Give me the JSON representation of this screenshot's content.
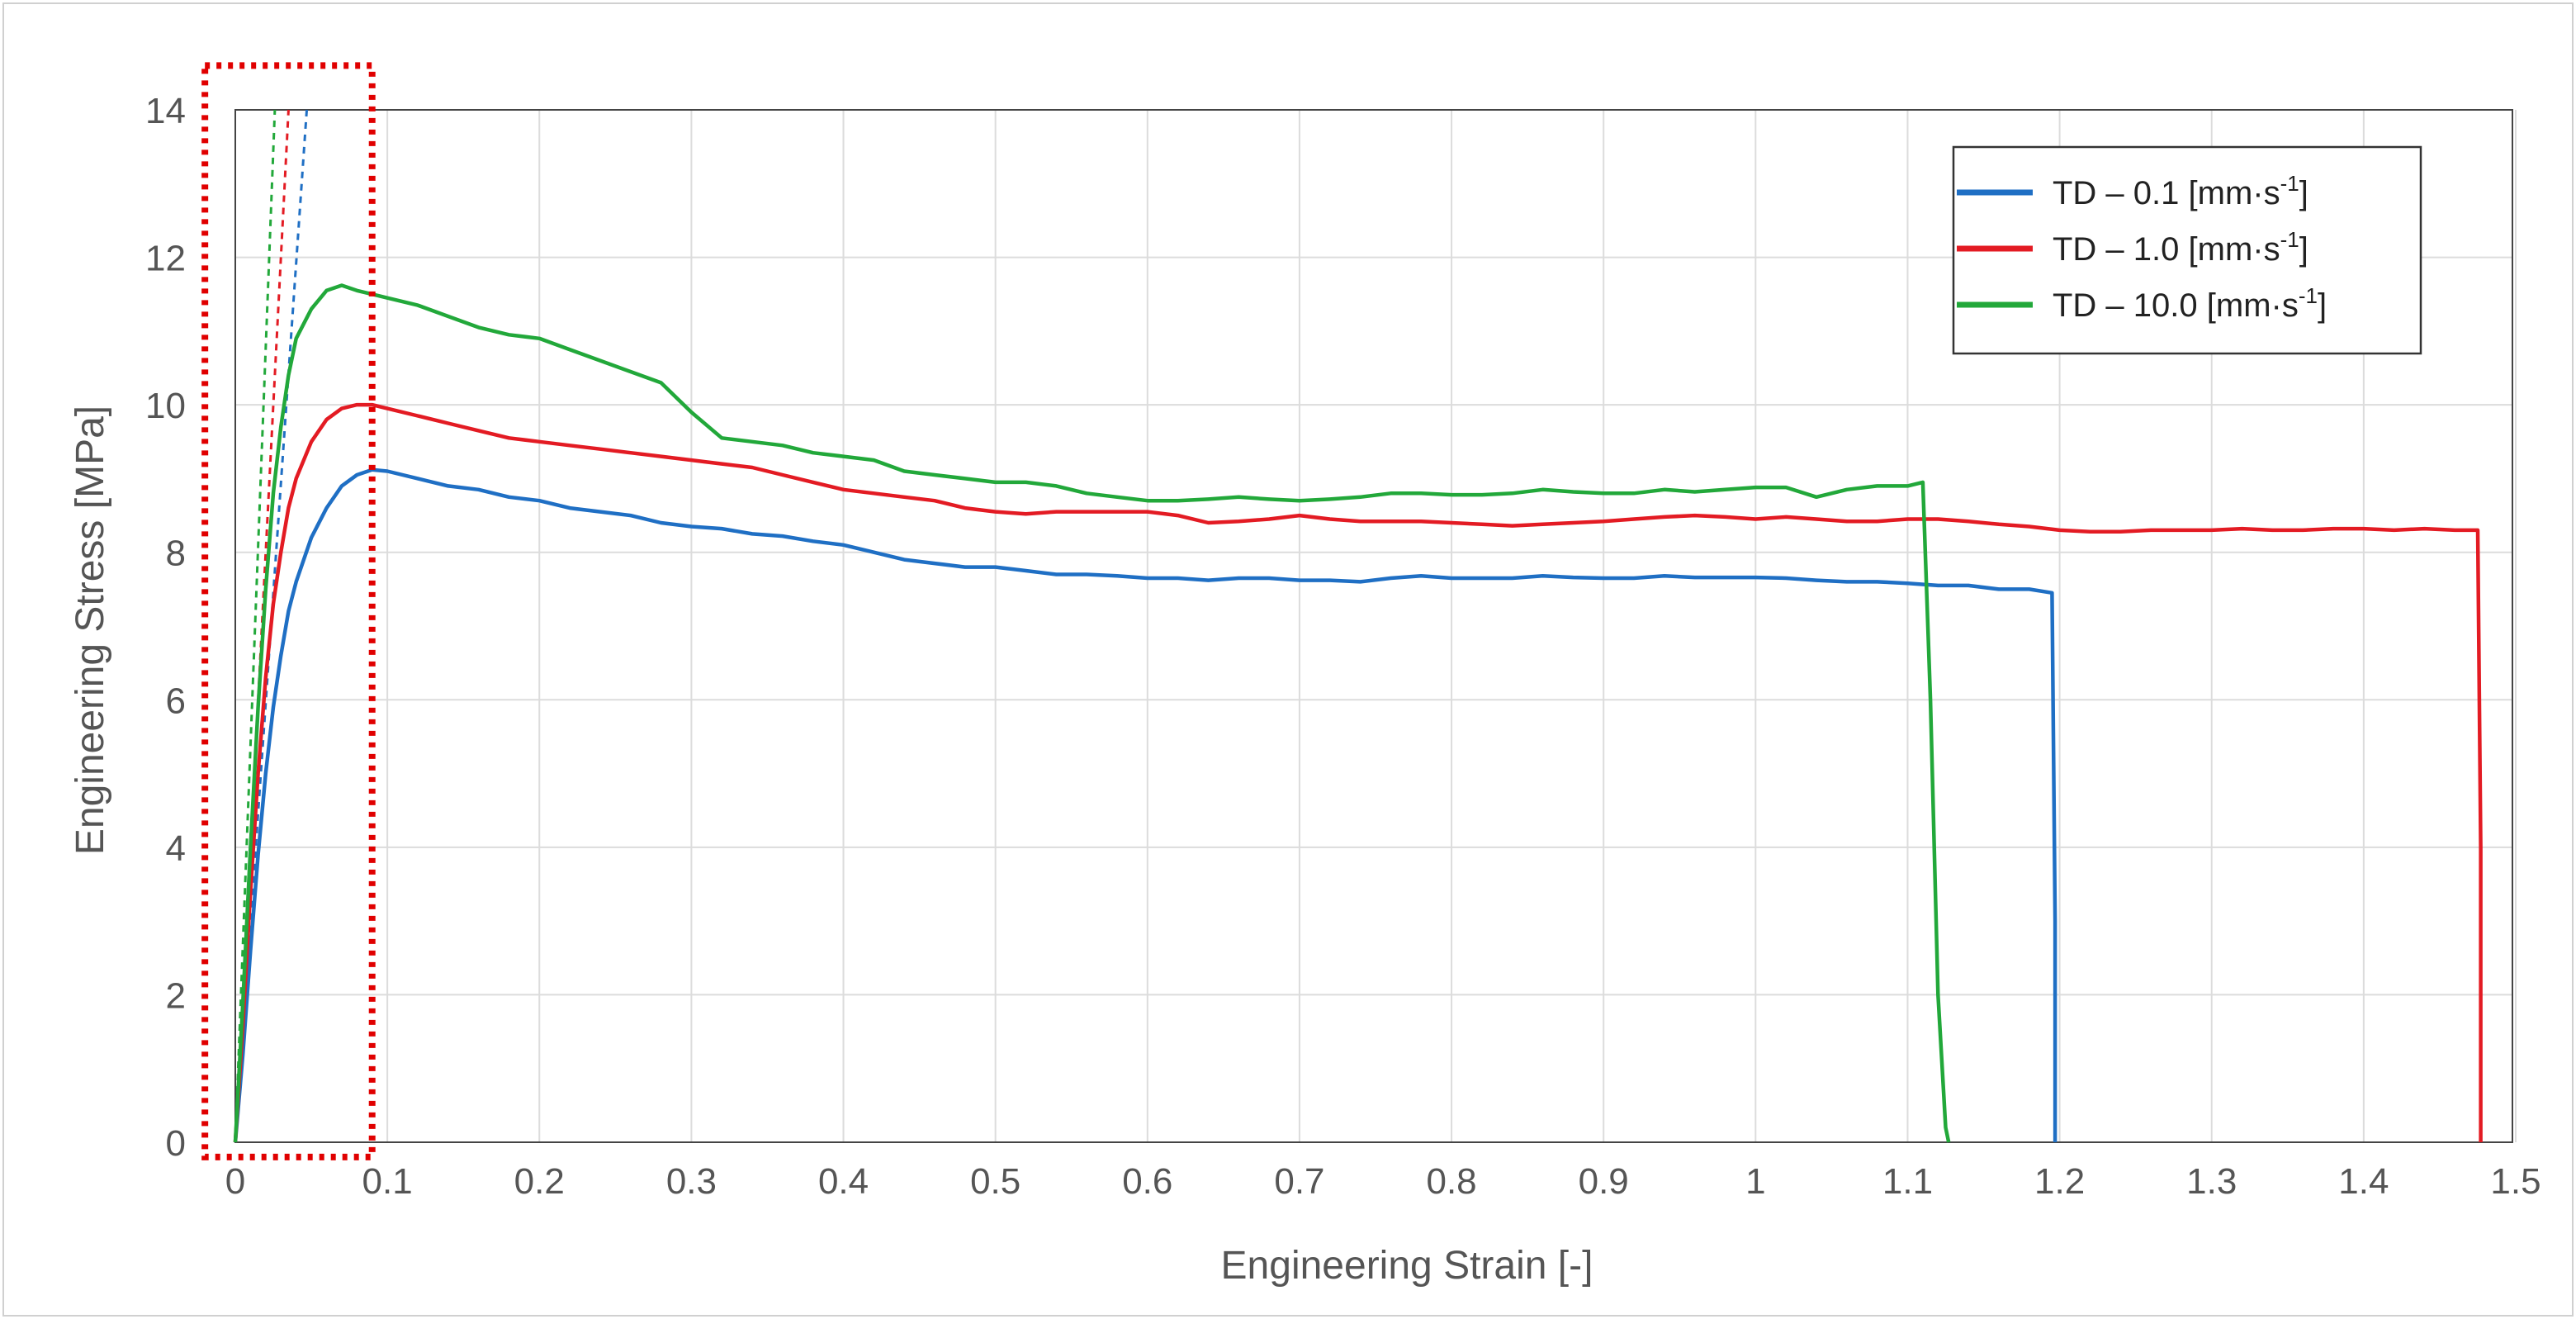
{
  "chart_data": {
    "type": "line",
    "title": "",
    "xlabel": "Engineering Strain [-]",
    "ylabel": "Engineering Stress [MPa]",
    "xlim": [
      0,
      1.5
    ],
    "ylim": [
      0,
      14
    ],
    "xticks": [
      0,
      0.1,
      0.2,
      0.3,
      0.4,
      0.5,
      0.6,
      0.7,
      0.8,
      0.9,
      1,
      1.1,
      1.2,
      1.3,
      1.4,
      1.5
    ],
    "xtick_labels": [
      "0",
      "0.1",
      "0.2",
      "0.3",
      "0.4",
      "0.5",
      "0.6",
      "0.7",
      "0.8",
      "0.9",
      "1",
      "1.1",
      "1.2",
      "1.3",
      "1.4",
      "1.5"
    ],
    "yticks": [
      0,
      2,
      4,
      6,
      8,
      10,
      12,
      14
    ],
    "ytick_labels": [
      "0",
      "2",
      "4",
      "6",
      "8",
      "10",
      "12",
      "14"
    ],
    "grid": true,
    "legend_position": "top-right",
    "series": [
      {
        "name": "TD – 0.1 [mm·s-1]",
        "legend_main": "TD – 0.1 [mm·s",
        "legend_sup": "-1",
        "legend_end": "]",
        "color": "#1f6fc4",
        "x": [
          0,
          0.005,
          0.01,
          0.015,
          0.02,
          0.025,
          0.03,
          0.035,
          0.04,
          0.05,
          0.06,
          0.07,
          0.08,
          0.09,
          0.1,
          0.12,
          0.14,
          0.16,
          0.18,
          0.2,
          0.22,
          0.24,
          0.26,
          0.28,
          0.3,
          0.32,
          0.34,
          0.36,
          0.38,
          0.4,
          0.42,
          0.44,
          0.46,
          0.48,
          0.5,
          0.52,
          0.54,
          0.56,
          0.58,
          0.6,
          0.62,
          0.64,
          0.66,
          0.68,
          0.7,
          0.72,
          0.74,
          0.76,
          0.78,
          0.8,
          0.82,
          0.84,
          0.86,
          0.88,
          0.9,
          0.92,
          0.94,
          0.96,
          0.98,
          1.0,
          1.02,
          1.04,
          1.06,
          1.08,
          1.1,
          1.12,
          1.14,
          1.16,
          1.18,
          1.195,
          1.197,
          1.197
        ],
        "y": [
          0,
          1.2,
          2.6,
          3.9,
          5.0,
          5.9,
          6.6,
          7.2,
          7.6,
          8.2,
          8.6,
          8.9,
          9.05,
          9.12,
          9.1,
          9.0,
          8.9,
          8.85,
          8.75,
          8.7,
          8.6,
          8.55,
          8.5,
          8.4,
          8.35,
          8.32,
          8.25,
          8.22,
          8.15,
          8.1,
          8.0,
          7.9,
          7.85,
          7.8,
          7.8,
          7.75,
          7.7,
          7.7,
          7.68,
          7.65,
          7.65,
          7.62,
          7.65,
          7.65,
          7.62,
          7.62,
          7.6,
          7.65,
          7.68,
          7.65,
          7.65,
          7.65,
          7.68,
          7.66,
          7.65,
          7.65,
          7.68,
          7.66,
          7.66,
          7.66,
          7.65,
          7.62,
          7.6,
          7.6,
          7.58,
          7.55,
          7.55,
          7.5,
          7.5,
          7.45,
          3.0,
          0
        ]
      },
      {
        "name": "TD – 1.0 [mm·s-1]",
        "legend_main": "TD – 1.0 [mm·s",
        "legend_sup": "-1",
        "legend_end": "]",
        "color": "#e31b23",
        "x": [
          0,
          0.005,
          0.01,
          0.015,
          0.02,
          0.025,
          0.03,
          0.035,
          0.04,
          0.05,
          0.06,
          0.07,
          0.08,
          0.09,
          0.1,
          0.12,
          0.14,
          0.16,
          0.18,
          0.2,
          0.22,
          0.24,
          0.26,
          0.28,
          0.3,
          0.32,
          0.34,
          0.36,
          0.38,
          0.4,
          0.42,
          0.44,
          0.46,
          0.48,
          0.5,
          0.52,
          0.54,
          0.56,
          0.58,
          0.6,
          0.62,
          0.64,
          0.66,
          0.68,
          0.7,
          0.72,
          0.74,
          0.76,
          0.78,
          0.8,
          0.82,
          0.84,
          0.86,
          0.88,
          0.9,
          0.92,
          0.94,
          0.96,
          0.98,
          1.0,
          1.02,
          1.04,
          1.06,
          1.08,
          1.1,
          1.12,
          1.14,
          1.16,
          1.18,
          1.2,
          1.22,
          1.24,
          1.26,
          1.28,
          1.3,
          1.32,
          1.34,
          1.36,
          1.38,
          1.4,
          1.42,
          1.44,
          1.46,
          1.475,
          1.477,
          1.477
        ],
        "y": [
          0,
          1.6,
          3.4,
          5.0,
          6.3,
          7.3,
          8.0,
          8.6,
          9.0,
          9.5,
          9.8,
          9.95,
          10.0,
          10.0,
          9.95,
          9.85,
          9.75,
          9.65,
          9.55,
          9.5,
          9.45,
          9.4,
          9.35,
          9.3,
          9.25,
          9.2,
          9.15,
          9.05,
          8.95,
          8.85,
          8.8,
          8.75,
          8.7,
          8.6,
          8.55,
          8.52,
          8.55,
          8.55,
          8.55,
          8.55,
          8.5,
          8.4,
          8.42,
          8.45,
          8.5,
          8.45,
          8.42,
          8.42,
          8.42,
          8.4,
          8.38,
          8.36,
          8.38,
          8.4,
          8.42,
          8.45,
          8.48,
          8.5,
          8.48,
          8.45,
          8.48,
          8.45,
          8.42,
          8.42,
          8.45,
          8.45,
          8.42,
          8.38,
          8.35,
          8.3,
          8.28,
          8.28,
          8.3,
          8.3,
          8.3,
          8.32,
          8.3,
          8.3,
          8.32,
          8.32,
          8.3,
          8.32,
          8.3,
          8.3,
          4.0,
          0
        ]
      },
      {
        "name": "TD – 10.0 [mm·s-1]",
        "legend_main": "TD – 10.0 [mm·s",
        "legend_sup": "-1",
        "legend_end": "]",
        "color": "#22a83a",
        "x": [
          0,
          0.005,
          0.01,
          0.015,
          0.02,
          0.025,
          0.03,
          0.035,
          0.04,
          0.05,
          0.06,
          0.07,
          0.08,
          0.09,
          0.1,
          0.12,
          0.14,
          0.16,
          0.18,
          0.2,
          0.22,
          0.24,
          0.26,
          0.28,
          0.3,
          0.32,
          0.34,
          0.36,
          0.38,
          0.4,
          0.42,
          0.44,
          0.46,
          0.48,
          0.5,
          0.52,
          0.54,
          0.56,
          0.58,
          0.6,
          0.62,
          0.64,
          0.66,
          0.68,
          0.7,
          0.72,
          0.74,
          0.76,
          0.78,
          0.8,
          0.82,
          0.84,
          0.86,
          0.88,
          0.9,
          0.92,
          0.94,
          0.96,
          0.98,
          1.0,
          1.02,
          1.04,
          1.06,
          1.08,
          1.1,
          1.11,
          1.115,
          1.12,
          1.125,
          1.127
        ],
        "y": [
          0,
          1.9,
          4.0,
          5.9,
          7.5,
          8.8,
          9.7,
          10.4,
          10.9,
          11.3,
          11.55,
          11.62,
          11.55,
          11.5,
          11.45,
          11.35,
          11.2,
          11.05,
          10.95,
          10.9,
          10.75,
          10.6,
          10.45,
          10.3,
          9.9,
          9.55,
          9.5,
          9.45,
          9.35,
          9.3,
          9.25,
          9.1,
          9.05,
          9.0,
          8.95,
          8.95,
          8.9,
          8.8,
          8.75,
          8.7,
          8.7,
          8.72,
          8.75,
          8.72,
          8.7,
          8.72,
          8.75,
          8.8,
          8.8,
          8.78,
          8.78,
          8.8,
          8.85,
          8.82,
          8.8,
          8.8,
          8.85,
          8.82,
          8.85,
          8.88,
          8.88,
          8.75,
          8.85,
          8.9,
          8.9,
          8.95,
          6.0,
          2.0,
          0.2,
          0
        ]
      }
    ],
    "elastic_guides": [
      {
        "color": "#1f6fc4",
        "x": [
          0,
          0.047
        ],
        "y": [
          0,
          14
        ]
      },
      {
        "color": "#e31b23",
        "x": [
          0,
          0.035
        ],
        "y": [
          0,
          14
        ]
      },
      {
        "color": "#22a83a",
        "x": [
          0,
          0.026
        ],
        "y": [
          0,
          14
        ]
      }
    ],
    "highlight_box": {
      "color": "#e00000",
      "x": [
        -0.02,
        0.09
      ],
      "y": [
        -0.2,
        14.6
      ]
    }
  }
}
